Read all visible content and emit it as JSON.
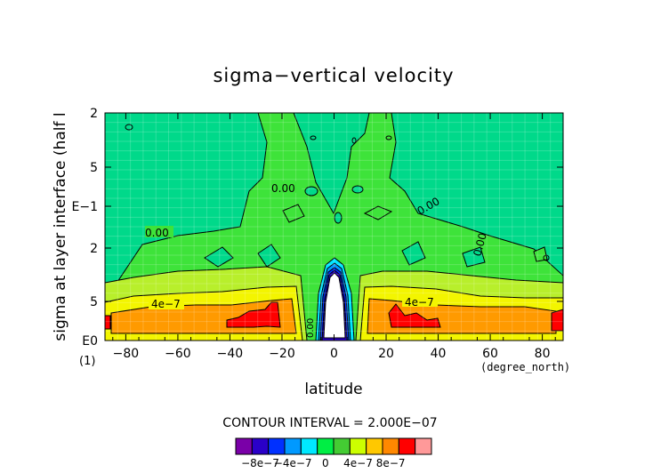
{
  "chart_data": {
    "type": "heatmap",
    "title": "sigma−vertical velocity",
    "xlabel": "latitude",
    "xunit": "(degree_north)",
    "ylabel": "sigma at layer interface (half l",
    "xlim": [
      -88,
      88
    ],
    "x_ticks": [
      -80,
      -60,
      -40,
      -20,
      0,
      20,
      40,
      60,
      80
    ],
    "x_tick_labels": [
      "−80",
      "−60",
      "−40",
      "−20",
      "0",
      "20",
      "40",
      "60",
      "80"
    ],
    "y_tick_labels": [
      "2",
      "5",
      "E−1",
      "2",
      "5",
      "E0"
    ],
    "y_corner_label": "(1)",
    "contour_interval_text": "CONTOUR INTERVAL = 2.000E−07",
    "contour_labels": [
      "0.00",
      "0.00",
      "0.00",
      "0.00",
      "4e−7",
      "4e−7",
      "0.00"
    ],
    "colorbar": {
      "colors": [
        "#7a00a8",
        "#2a00c8",
        "#0030ff",
        "#0099ff",
        "#00e8ff",
        "#00ee44",
        "#44cc33",
        "#ccff00",
        "#ffc800",
        "#ff8800",
        "#ff0000",
        "#ff9999"
      ],
      "tick_labels": [
        "−8e−7",
        "−4e−7",
        "0",
        "4e−7",
        "8e−7"
      ]
    }
  }
}
